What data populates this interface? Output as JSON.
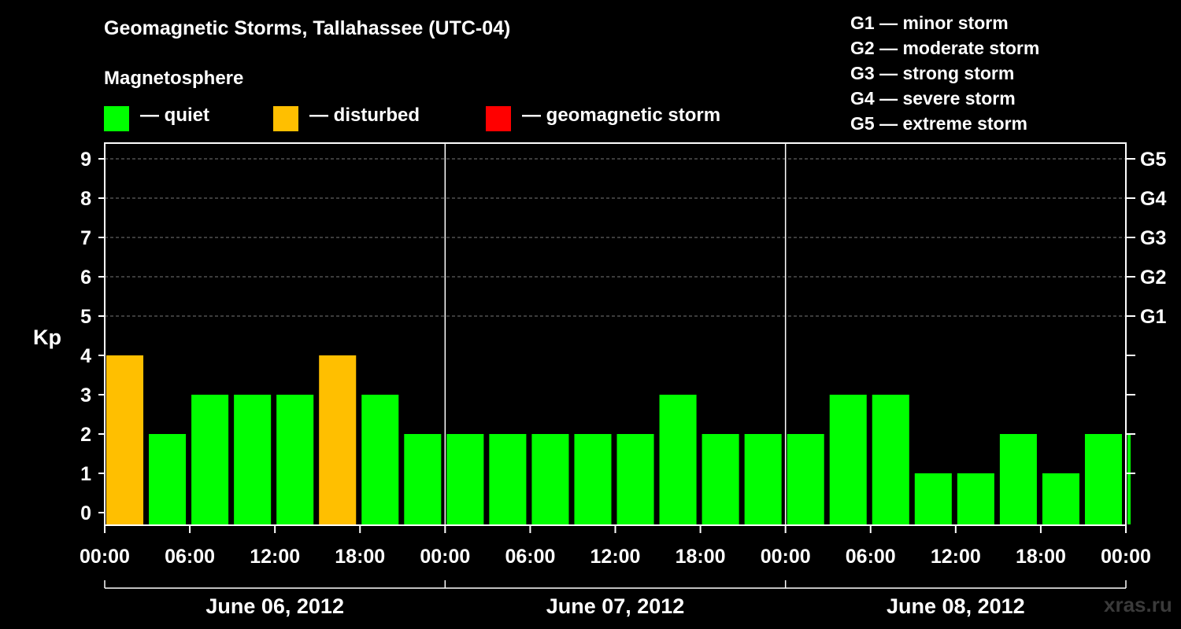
{
  "title": "Geomagnetic Storms, Tallahassee (UTC-04)",
  "magnetosphere_heading": "Magnetosphere",
  "legend": [
    {
      "label": "— quiet",
      "color": "#00ff00"
    },
    {
      "label": "— disturbed",
      "color": "#ffbf00"
    },
    {
      "label": "— geomagnetic storm",
      "color": "#ff0000"
    }
  ],
  "g_scale": [
    "G1 — minor storm",
    "G2 — moderate storm",
    "G3 — strong storm",
    "G4 — severe storm",
    "G5 — extreme storm"
  ],
  "watermark": "xras.ru",
  "chart_data": {
    "type": "bar",
    "ylabel": "Kp",
    "ylim": [
      0,
      9
    ],
    "yticks": [
      0,
      1,
      2,
      3,
      4,
      5,
      6,
      7,
      8,
      9
    ],
    "right_axis": [
      {
        "kp": 5,
        "label": "G1"
      },
      {
        "kp": 6,
        "label": "G2"
      },
      {
        "kp": 7,
        "label": "G3"
      },
      {
        "kp": 8,
        "label": "G4"
      },
      {
        "kp": 9,
        "label": "G5"
      }
    ],
    "xtick_labels": [
      "00:00",
      "06:00",
      "12:00",
      "18:00",
      "00:00",
      "06:00",
      "12:00",
      "18:00",
      "00:00",
      "06:00",
      "12:00",
      "18:00",
      "00:00"
    ],
    "days": [
      "June 06, 2012",
      "June 07, 2012",
      "June 08, 2012"
    ],
    "hours_per_bar": 3,
    "values": [
      4,
      2,
      3,
      3,
      3,
      4,
      3,
      2,
      2,
      2,
      2,
      2,
      2,
      3,
      2,
      2,
      2,
      3,
      3,
      1,
      1,
      2,
      1,
      2,
      2
    ],
    "last_bar_partial_fraction": 0.2,
    "colors": {
      "quiet": "#00ff00",
      "disturbed": "#ffbf00",
      "storm": "#ff0000"
    },
    "thresholds": {
      "disturbed_min": 4,
      "storm_min": 5
    }
  }
}
